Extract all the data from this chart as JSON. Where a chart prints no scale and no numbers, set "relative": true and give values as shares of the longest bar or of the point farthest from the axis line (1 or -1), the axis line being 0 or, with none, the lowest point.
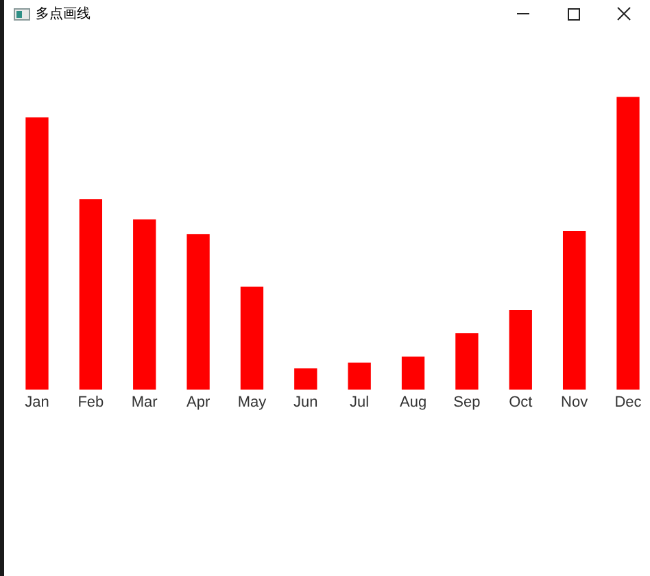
{
  "chart_data": {
    "type": "bar",
    "title": "多点画线",
    "categories": [
      "Jan",
      "Feb",
      "Mar",
      "Apr",
      "May",
      "Jun",
      "Jul",
      "Aug",
      "Sep",
      "Oct",
      "Nov",
      "Dec"
    ],
    "values": [
      0.93,
      0.65,
      0.58,
      0.53,
      0.35,
      0.07,
      0.09,
      0.11,
      0.19,
      0.27,
      0.54,
      1
    ],
    "color": "#ff0000",
    "relative": true
  }
}
